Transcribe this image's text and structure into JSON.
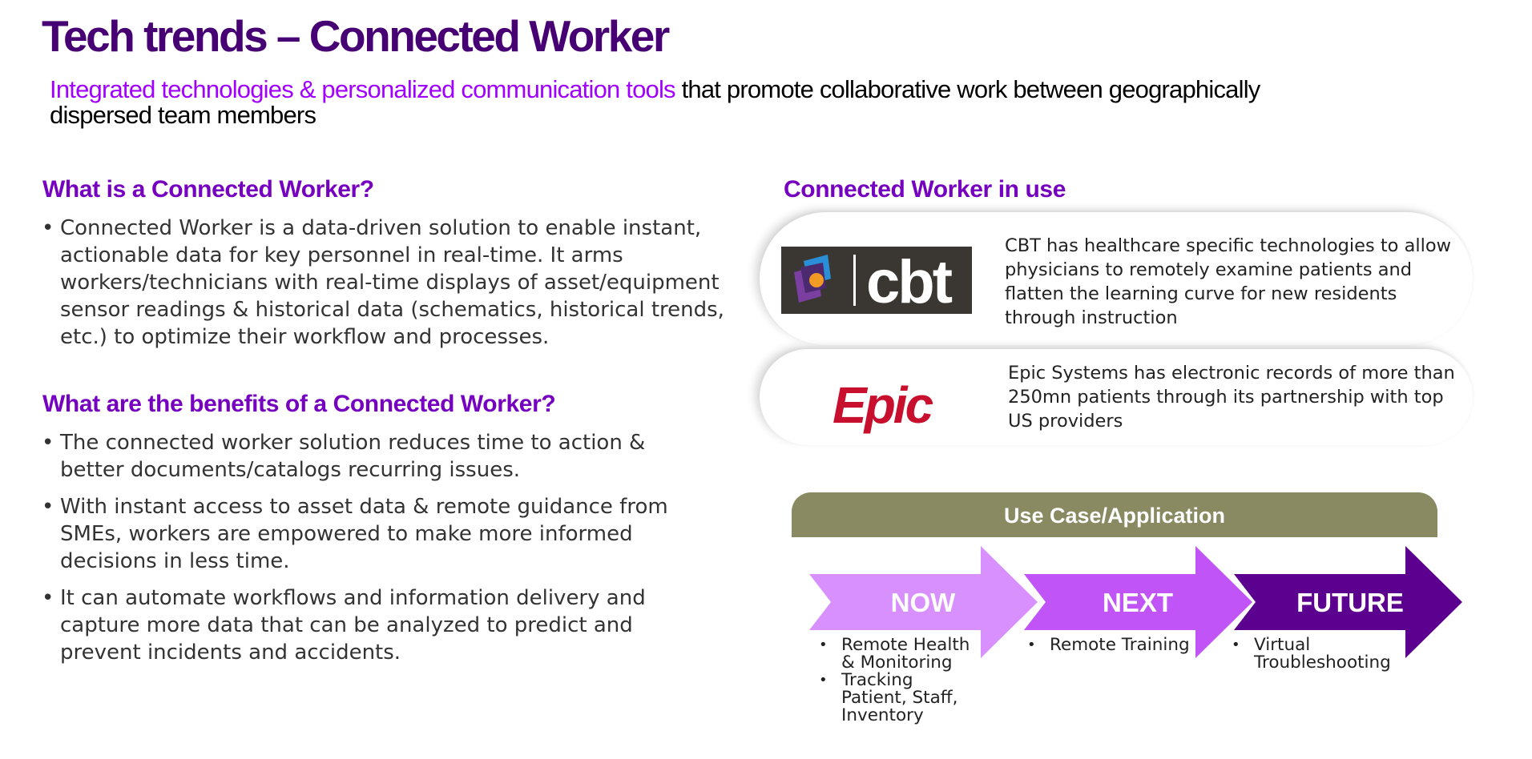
{
  "title": "Tech trends – Connected Worker",
  "subtitle": {
    "highlight": "Integrated technologies & personalized communication tools",
    "rest": " that promote collaborative work between geographically dispersed team members"
  },
  "left": {
    "what_heading": "What is a Connected Worker?",
    "what_bullets": [
      "Connected Worker is a data-driven solution to enable instant, actionable data for key personnel in real-time. It arms workers/technicians with real-time displays of asset/equipment sensor readings & historical data (schematics, historical trends, etc.) to optimize their workflow and processes."
    ],
    "benefits_heading": "What are the benefits of a Connected Worker?",
    "benefits_bullets": [
      "The connected worker solution reduces time to action & better documents/catalogs recurring issues.",
      "With instant access to asset data & remote guidance from SMEs, workers are empowered to make more informed decisions in less time.",
      "It can automate workflows and information delivery and capture more data that can be analyzed to predict and prevent incidents and accidents."
    ]
  },
  "right": {
    "heading": "Connected Worker in use",
    "cases": [
      {
        "logo_text": "cbt",
        "text": "CBT has healthcare specific technologies to allow physicians to remotely examine patients and flatten the learning curve for new residents through instruction"
      },
      {
        "logo_text": "Epic",
        "text": "Epic Systems has electronic records of more than 250mn patients through its partnership with top US providers"
      }
    ],
    "use_case_title": "Use Case/Application",
    "stages": [
      {
        "label": "NOW",
        "items": [
          "Remote Health & Monitoring",
          "Tracking Patient, Staff, Inventory"
        ]
      },
      {
        "label": "NEXT",
        "items": [
          "Remote Training"
        ]
      },
      {
        "label": "FUTURE",
        "items": [
          "Virtual Troubleshooting"
        ]
      }
    ]
  },
  "colors": {
    "title": "#460073",
    "accent": "#a100ff",
    "heading": "#7500c0",
    "bar": "#898962",
    "arrow_now": "#d990ff",
    "arrow_next": "#c054f7",
    "arrow_future": "#5c008f",
    "epic_red": "#c8102e"
  }
}
